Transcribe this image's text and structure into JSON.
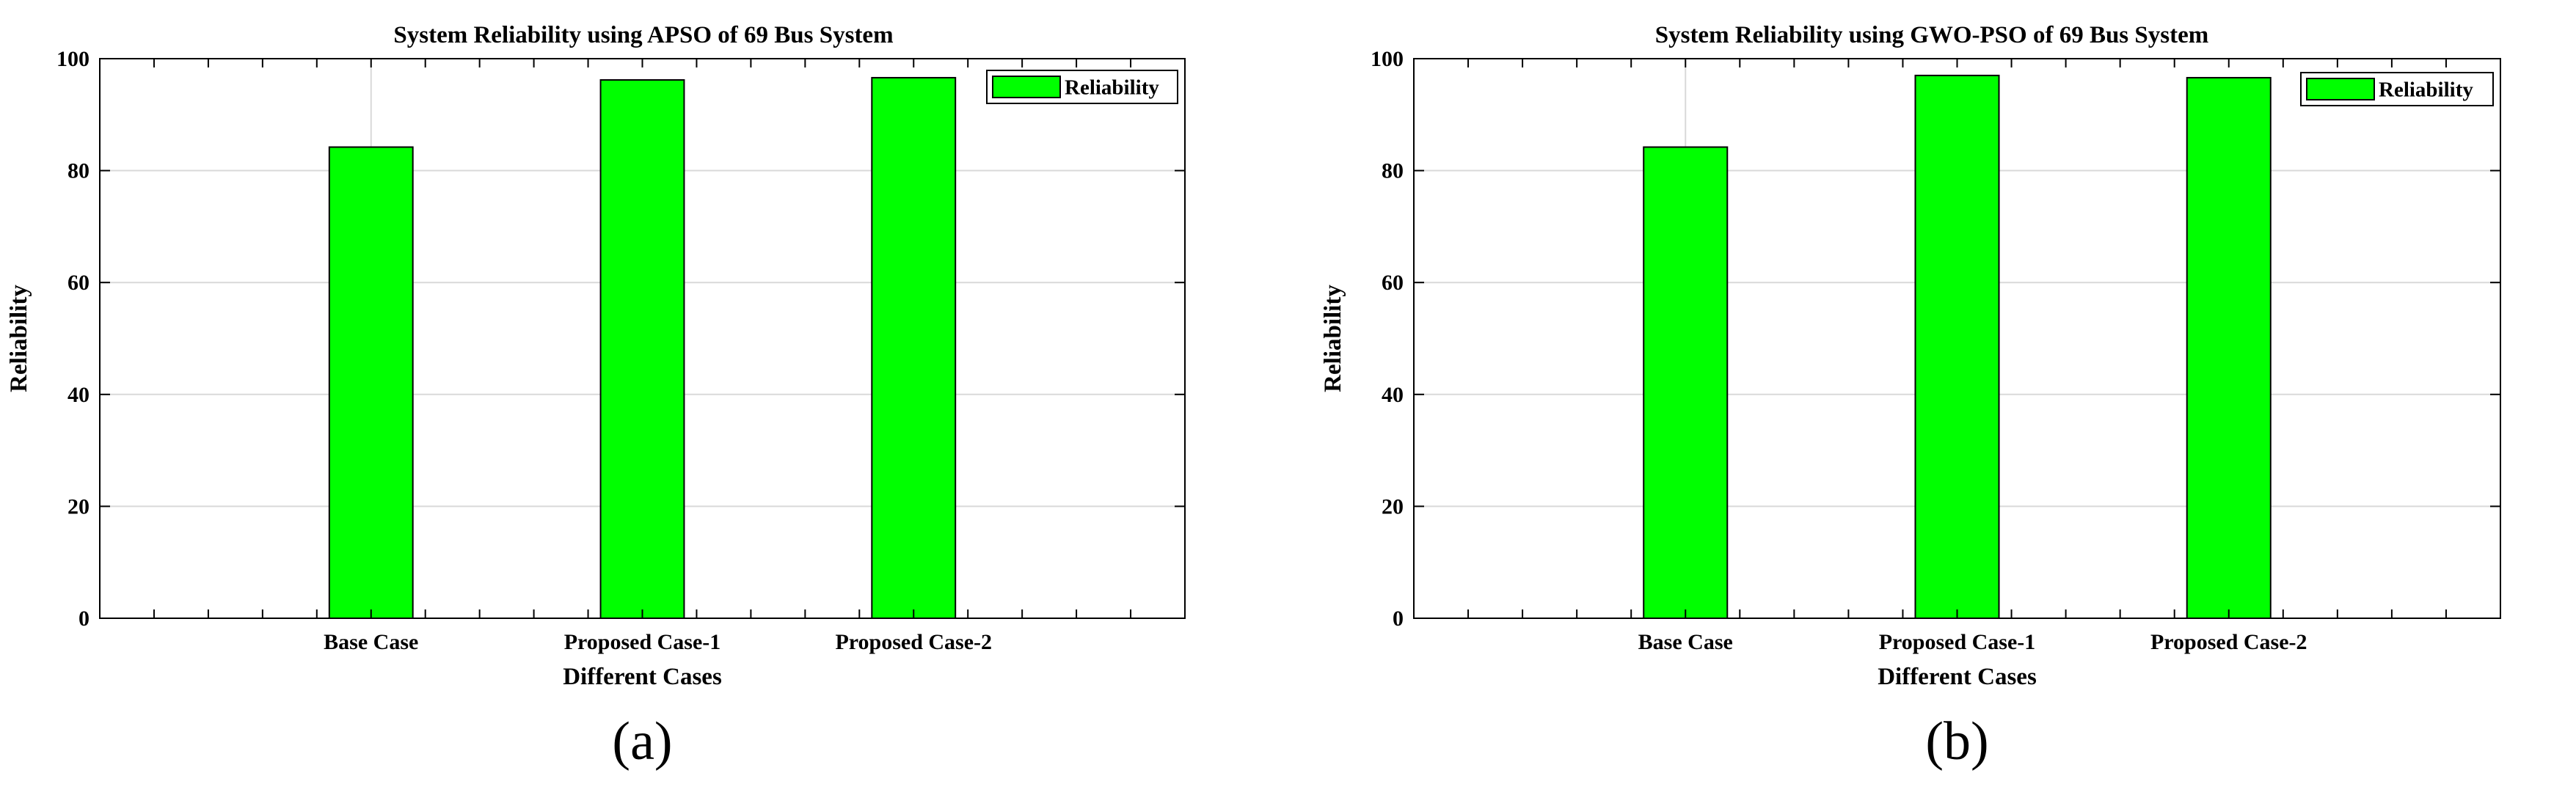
{
  "chart_data": [
    {
      "type": "bar",
      "title": "System Reliability using APSO of 69 Bus System",
      "xlabel": "Different Cases",
      "ylabel": "Reliability",
      "categories": [
        "Base Case",
        "Proposed Case-1",
        "Proposed Case-2"
      ],
      "series": [
        {
          "name": "Reliability",
          "values": [
            84.2,
            96.2,
            96.6
          ],
          "color": "#00ff00"
        }
      ],
      "ylim": [
        0,
        100
      ],
      "yticks": [
        0,
        20,
        40,
        60,
        80,
        100
      ],
      "xlim": [
        0,
        4
      ],
      "grid": true,
      "legend_position": "top-right",
      "panel_label": "(a)"
    },
    {
      "type": "bar",
      "title": "System Reliability using GWO-PSO of 69 Bus System",
      "xlabel": "Different Cases",
      "ylabel": "Reliability",
      "categories": [
        "Base Case",
        "Proposed Case-1",
        "Proposed Case-2"
      ],
      "series": [
        {
          "name": "Reliability",
          "values": [
            84.2,
            97.0,
            96.6
          ],
          "color": "#00ff00"
        }
      ],
      "ylim": [
        0,
        100
      ],
      "yticks": [
        0,
        20,
        40,
        60,
        80,
        100
      ],
      "xlim": [
        0,
        4
      ],
      "grid": true,
      "legend_position": "top-right",
      "panel_label": "(b)"
    }
  ]
}
